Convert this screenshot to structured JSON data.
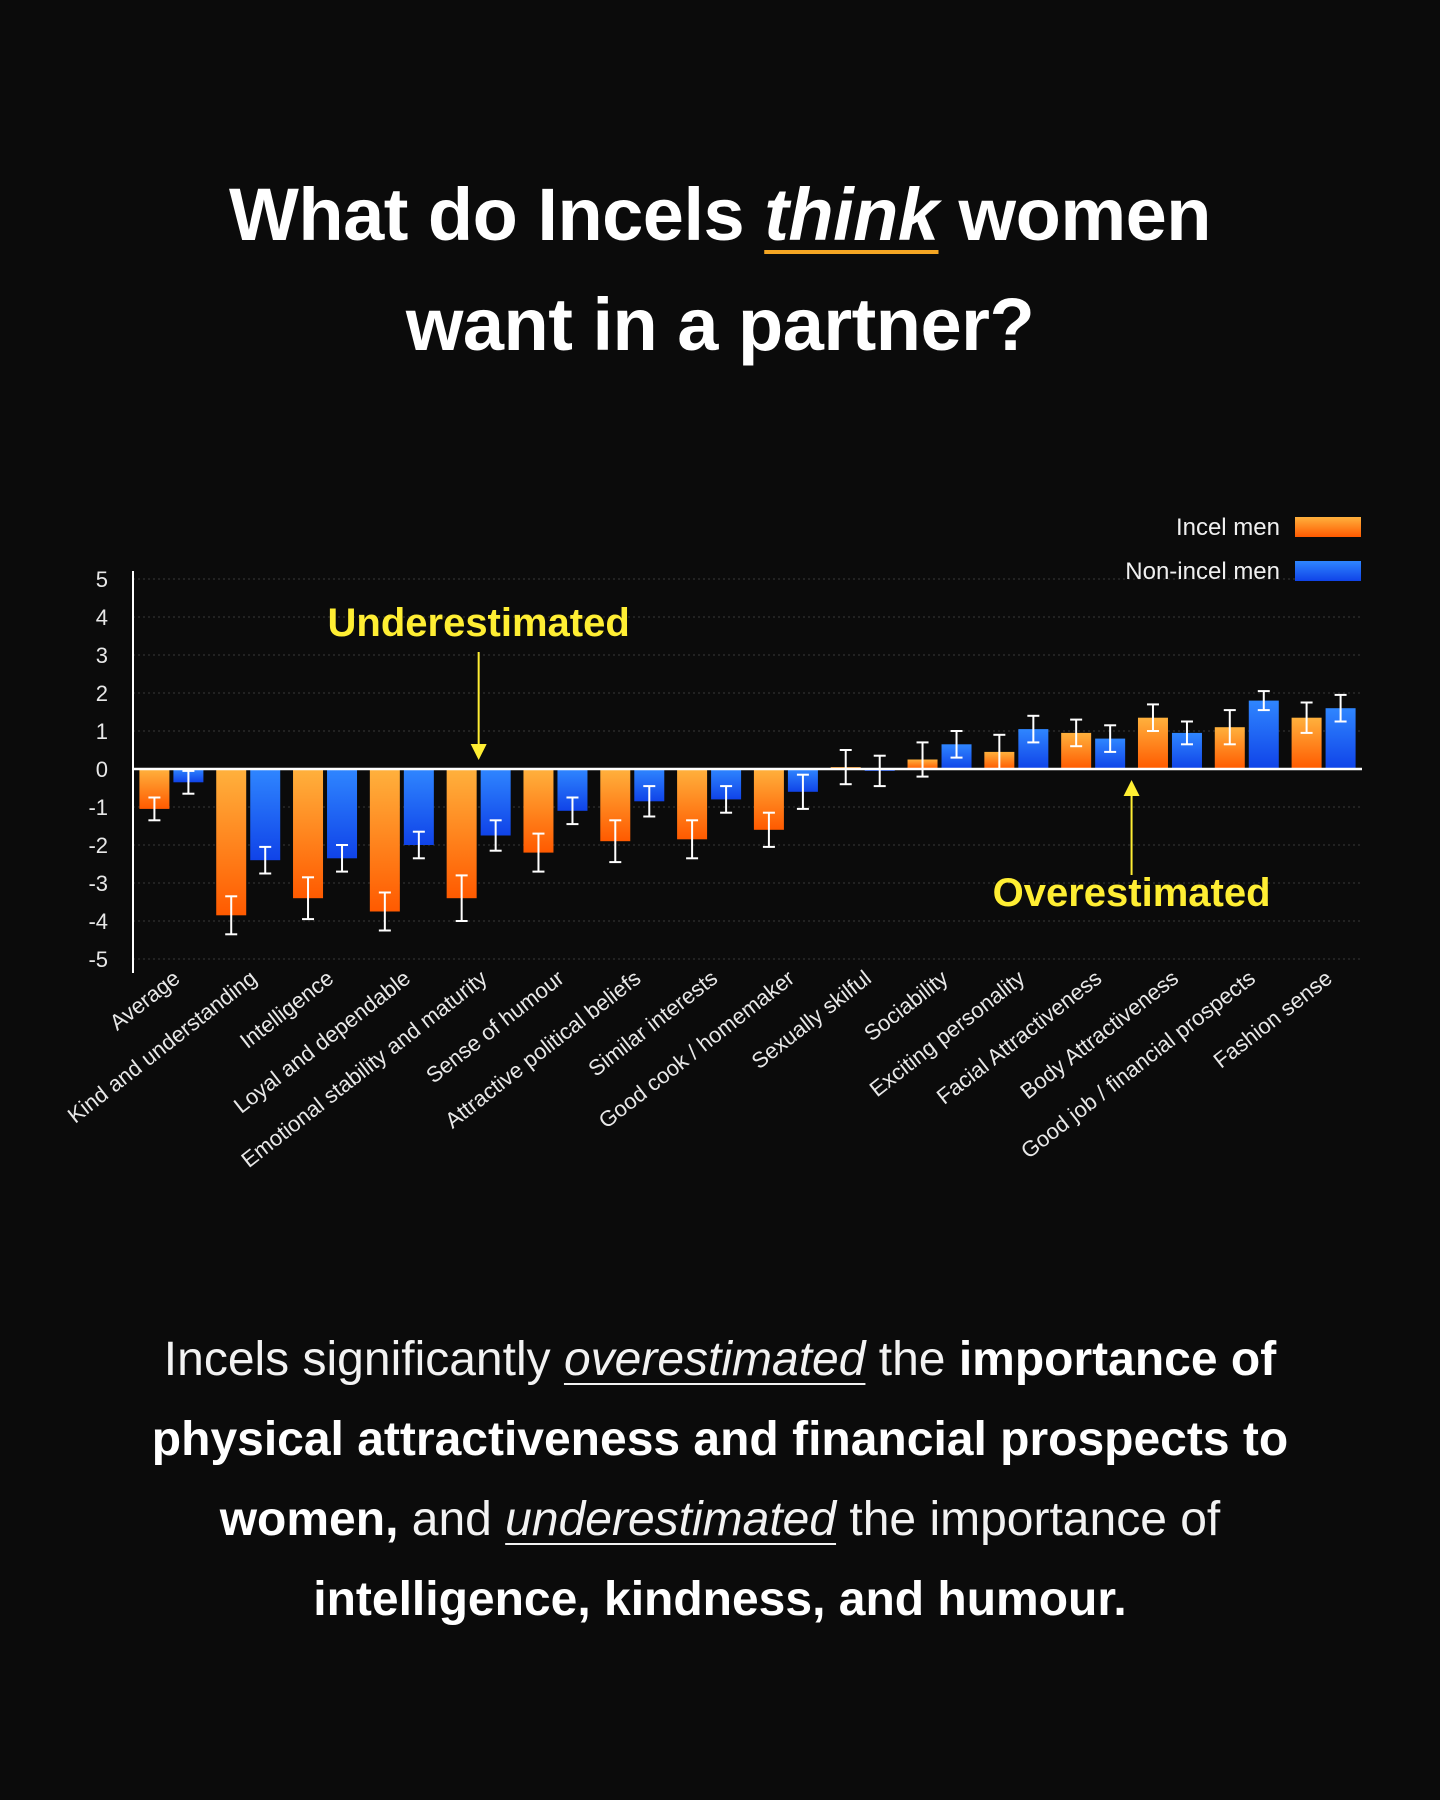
{
  "title": {
    "part1": "What do Incels ",
    "emphasis": "think",
    "part2": " women",
    "line2": "want in a partner?"
  },
  "colors": {
    "background": "#0b0b0b",
    "incel": "#ff8a00",
    "incel_light": "#ffb13d",
    "non_incel": "#1a5cff",
    "non_incel_light": "#2f86ff",
    "annotation": "#ffee33",
    "axis": "#ffffff"
  },
  "chart_data": {
    "type": "bar",
    "title": "",
    "xlabel": "",
    "ylabel": "",
    "ylim": [
      -5,
      5
    ],
    "yticks": [
      5,
      4,
      3,
      2,
      1,
      0,
      -1,
      -2,
      -3,
      -4,
      -5
    ],
    "grid": true,
    "legend_position": "top-right",
    "categories": [
      "Average",
      "Kind and understanding",
      "Intelligence",
      "Loyal and dependable",
      "Emotional stability and maturity",
      "Sense of humour",
      "Attractive political beliefs",
      "Similar interests",
      "Good cook / homemaker",
      "Sexually skilful",
      "Sociability",
      "Exciting personality",
      "Facial Attractiveness",
      "Body Attractiveness",
      "Good job / financial prospects",
      "Fashion sense"
    ],
    "series": [
      {
        "name": "Incel men",
        "color": "#ff8a00",
        "values": [
          -1.05,
          -3.85,
          -3.4,
          -3.75,
          -3.4,
          -2.2,
          -1.9,
          -1.85,
          -1.6,
          0.05,
          0.25,
          0.45,
          0.95,
          1.35,
          1.1,
          1.35
        ],
        "errors": [
          0.3,
          0.5,
          0.55,
          0.5,
          0.6,
          0.5,
          0.55,
          0.5,
          0.45,
          0.45,
          0.45,
          0.45,
          0.35,
          0.35,
          0.45,
          0.4
        ]
      },
      {
        "name": "Non-incel men",
        "color": "#1a5cff",
        "values": [
          -0.35,
          -2.4,
          -2.35,
          -2.0,
          -1.75,
          -1.1,
          -0.85,
          -0.8,
          -0.6,
          -0.05,
          0.65,
          1.05,
          0.8,
          0.95,
          1.8,
          1.6
        ],
        "errors": [
          0.3,
          0.35,
          0.35,
          0.35,
          0.4,
          0.35,
          0.4,
          0.35,
          0.45,
          0.4,
          0.35,
          0.35,
          0.35,
          0.3,
          0.25,
          0.35
        ]
      }
    ],
    "annotations": [
      {
        "text": "Underestimated",
        "category_index": 4,
        "direction": "down"
      },
      {
        "text": "Overestimated",
        "category_index": 12.5,
        "direction": "up"
      }
    ]
  },
  "caption": {
    "s1": "Incels significantly ",
    "s2": "overestimated",
    "s3": " the ",
    "s4": "importance of physical attractiveness and financial prospects to women,",
    "s5": " and ",
    "s6": "underestimated",
    "s7": " the importance of ",
    "s8": "intelligence, kindness, and humour."
  }
}
